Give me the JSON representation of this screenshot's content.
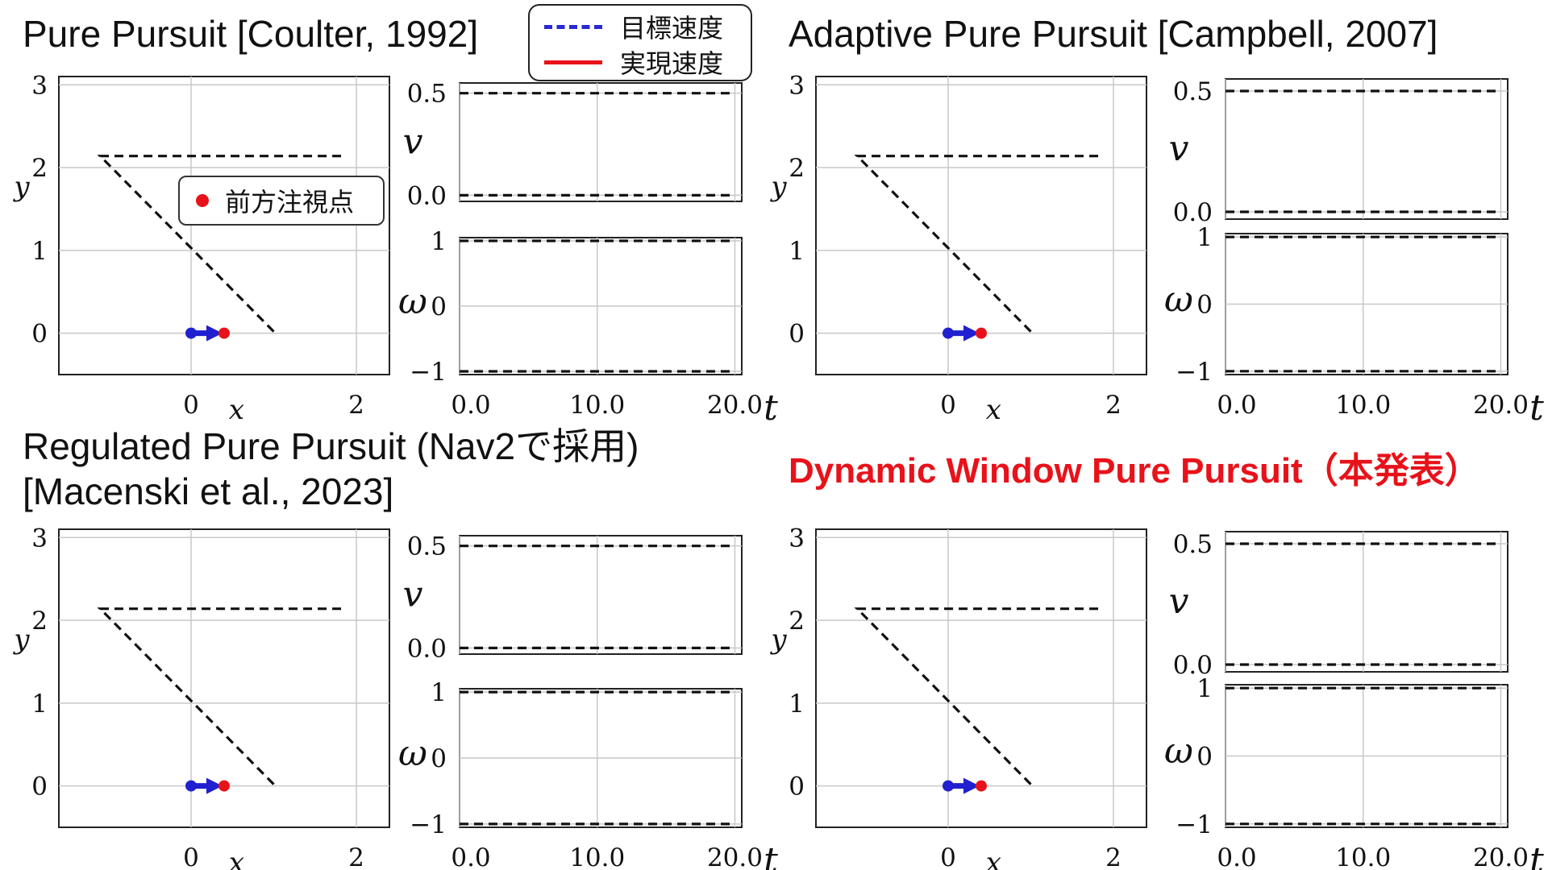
{
  "titles": {
    "pp": "Pure Pursuit [Coulter, 1992]",
    "app": "Adaptive Pure Pursuit [Campbell, 2007]",
    "rpp_line1": "Regulated Pure Pursuit (Nav2で採用)",
    "rpp_line2": "[Macenski et al., 2023]",
    "dwpp": "Dynamic Window Pure Pursuit（本発表）"
  },
  "legend": {
    "target": "目標速度",
    "actual": "実現速度",
    "lookahead": "前方注視点"
  },
  "colors": {
    "path": "#111111",
    "robot": "#2020d0",
    "lookahead": "#e8121a",
    "title_highlight": "#e8121a"
  },
  "chart_data": [
    {
      "type": "line",
      "panel": "pure-pursuit-trajectory",
      "xlabel": "x",
      "ylabel": "y",
      "xticks": [
        "0",
        "2"
      ],
      "yticks": [
        "0",
        "1",
        "2",
        "3"
      ],
      "xlim": [
        -1.6,
        2.4
      ],
      "ylim": [
        -0.5,
        3.1
      ],
      "grid": true,
      "series": [
        {
          "style": "dashed",
          "x": [
            1.0,
            -1.1,
            1.85
          ],
          "y": [
            0.02,
            2.14,
            2.14
          ]
        }
      ],
      "robot": {
        "x": 0.0,
        "y": 0.0,
        "heading_deg": 0
      },
      "lookahead_point": {
        "x": 0.4,
        "y": 0.0
      }
    },
    {
      "type": "line",
      "panel": "pure-pursuit-v",
      "ylabel": "v",
      "yticks": [
        "0.0",
        "0.5"
      ],
      "xlim": [
        0,
        20.5
      ],
      "ylim": [
        -0.03,
        0.55
      ],
      "grid": true,
      "series": [
        {
          "style": "dashed",
          "x": [
            0,
            20
          ],
          "y": [
            0.5,
            0.5
          ]
        },
        {
          "style": "dashed",
          "x": [
            0,
            20
          ],
          "y": [
            0.0,
            0.0
          ]
        }
      ]
    },
    {
      "type": "line",
      "panel": "pure-pursuit-omega",
      "xlabel": "t",
      "ylabel": "ω",
      "xticks": [
        "0.0",
        "10.0",
        "20.0"
      ],
      "yticks": [
        "−1",
        "0",
        "1"
      ],
      "xlim": [
        0,
        20.5
      ],
      "ylim": [
        -1.05,
        1.05
      ],
      "grid": true,
      "series": [
        {
          "style": "dashed",
          "x": [
            0,
            20
          ],
          "y": [
            1,
            1
          ]
        },
        {
          "style": "dashed",
          "x": [
            0,
            20
          ],
          "y": [
            -1,
            -1
          ]
        }
      ]
    },
    {
      "type": "line",
      "panel": "adaptive-pure-pursuit-trajectory",
      "xlabel": "x",
      "ylabel": "y",
      "xticks": [
        "0",
        "2"
      ],
      "yticks": [
        "0",
        "1",
        "2",
        "3"
      ],
      "xlim": [
        -1.6,
        2.4
      ],
      "ylim": [
        -0.5,
        3.1
      ],
      "grid": true,
      "series": [
        {
          "style": "dashed",
          "x": [
            1.0,
            -1.1,
            1.85
          ],
          "y": [
            0.02,
            2.14,
            2.14
          ]
        }
      ],
      "robot": {
        "x": 0.0,
        "y": 0.0,
        "heading_deg": 0
      },
      "lookahead_point": {
        "x": 0.4,
        "y": 0.0
      }
    },
    {
      "type": "line",
      "panel": "adaptive-pure-pursuit-v",
      "ylabel": "v",
      "yticks": [
        "0.0",
        "0.5"
      ],
      "xlim": [
        0,
        20.5
      ],
      "ylim": [
        -0.03,
        0.55
      ],
      "grid": true,
      "series": [
        {
          "style": "dashed",
          "x": [
            0,
            20
          ],
          "y": [
            0.5,
            0.5
          ]
        },
        {
          "style": "dashed",
          "x": [
            0,
            20
          ],
          "y": [
            0.0,
            0.0
          ]
        }
      ]
    },
    {
      "type": "line",
      "panel": "adaptive-pure-pursuit-omega",
      "xlabel": "t",
      "ylabel": "ω",
      "xticks": [
        "0.0",
        "10.0",
        "20.0"
      ],
      "yticks": [
        "−1",
        "0",
        "1"
      ],
      "xlim": [
        0,
        20.5
      ],
      "ylim": [
        -1.05,
        1.05
      ],
      "grid": true,
      "series": [
        {
          "style": "dashed",
          "x": [
            0,
            20
          ],
          "y": [
            1,
            1
          ]
        },
        {
          "style": "dashed",
          "x": [
            0,
            20
          ],
          "y": [
            -1,
            -1
          ]
        }
      ]
    },
    {
      "type": "line",
      "panel": "regulated-pure-pursuit-trajectory",
      "xlabel": "x",
      "ylabel": "y",
      "xticks": [
        "0",
        "2"
      ],
      "yticks": [
        "0",
        "1",
        "2",
        "3"
      ],
      "xlim": [
        -1.6,
        2.4
      ],
      "ylim": [
        -0.5,
        3.1
      ],
      "grid": true,
      "series": [
        {
          "style": "dashed",
          "x": [
            1.0,
            -1.1,
            1.85
          ],
          "y": [
            0.02,
            2.14,
            2.14
          ]
        }
      ],
      "robot": {
        "x": 0.0,
        "y": 0.0,
        "heading_deg": 0
      },
      "lookahead_point": {
        "x": 0.4,
        "y": 0.0
      }
    },
    {
      "type": "line",
      "panel": "regulated-pure-pursuit-v",
      "ylabel": "v",
      "yticks": [
        "0.0",
        "0.5"
      ],
      "xlim": [
        0,
        20.5
      ],
      "ylim": [
        -0.03,
        0.55
      ],
      "grid": true,
      "series": [
        {
          "style": "dashed",
          "x": [
            0,
            20
          ],
          "y": [
            0.5,
            0.5
          ]
        },
        {
          "style": "dashed",
          "x": [
            0,
            20
          ],
          "y": [
            0.0,
            0.0
          ]
        }
      ]
    },
    {
      "type": "line",
      "panel": "regulated-pure-pursuit-omega",
      "xlabel": "t",
      "ylabel": "ω",
      "xticks": [
        "0.0",
        "10.0",
        "20.0"
      ],
      "yticks": [
        "−1",
        "0",
        "1"
      ],
      "xlim": [
        0,
        20.5
      ],
      "ylim": [
        -1.05,
        1.05
      ],
      "grid": true,
      "series": [
        {
          "style": "dashed",
          "x": [
            0,
            20
          ],
          "y": [
            1,
            1
          ]
        },
        {
          "style": "dashed",
          "x": [
            0,
            20
          ],
          "y": [
            -1,
            -1
          ]
        }
      ]
    },
    {
      "type": "line",
      "panel": "dynamic-window-pure-pursuit-trajectory",
      "xlabel": "x",
      "ylabel": "y",
      "xticks": [
        "0",
        "2"
      ],
      "yticks": [
        "0",
        "1",
        "2",
        "3"
      ],
      "xlim": [
        -1.6,
        2.4
      ],
      "ylim": [
        -0.5,
        3.1
      ],
      "grid": true,
      "series": [
        {
          "style": "dashed",
          "x": [
            1.0,
            -1.1,
            1.85
          ],
          "y": [
            0.02,
            2.14,
            2.14
          ]
        }
      ],
      "robot": {
        "x": 0.0,
        "y": 0.0,
        "heading_deg": 0
      },
      "lookahead_point": {
        "x": 0.4,
        "y": 0.0
      }
    },
    {
      "type": "line",
      "panel": "dynamic-window-pure-pursuit-v",
      "ylabel": "v",
      "yticks": [
        "0.0",
        "0.5"
      ],
      "xlim": [
        0,
        20.5
      ],
      "ylim": [
        -0.03,
        0.55
      ],
      "grid": true,
      "series": [
        {
          "style": "dashed",
          "x": [
            0,
            20
          ],
          "y": [
            0.5,
            0.5
          ]
        },
        {
          "style": "dashed",
          "x": [
            0,
            20
          ],
          "y": [
            0.0,
            0.0
          ]
        }
      ]
    },
    {
      "type": "line",
      "panel": "dynamic-window-pure-pursuit-omega",
      "xlabel": "t",
      "ylabel": "ω",
      "xticks": [
        "0.0",
        "10.0",
        "20.0"
      ],
      "yticks": [
        "−1",
        "0",
        "1"
      ],
      "xlim": [
        0,
        20.5
      ],
      "ylim": [
        -1.05,
        1.05
      ],
      "grid": true,
      "series": [
        {
          "style": "dashed",
          "x": [
            0,
            20
          ],
          "y": [
            1,
            1
          ]
        },
        {
          "style": "dashed",
          "x": [
            0,
            20
          ],
          "y": [
            -1,
            -1
          ]
        }
      ]
    }
  ]
}
